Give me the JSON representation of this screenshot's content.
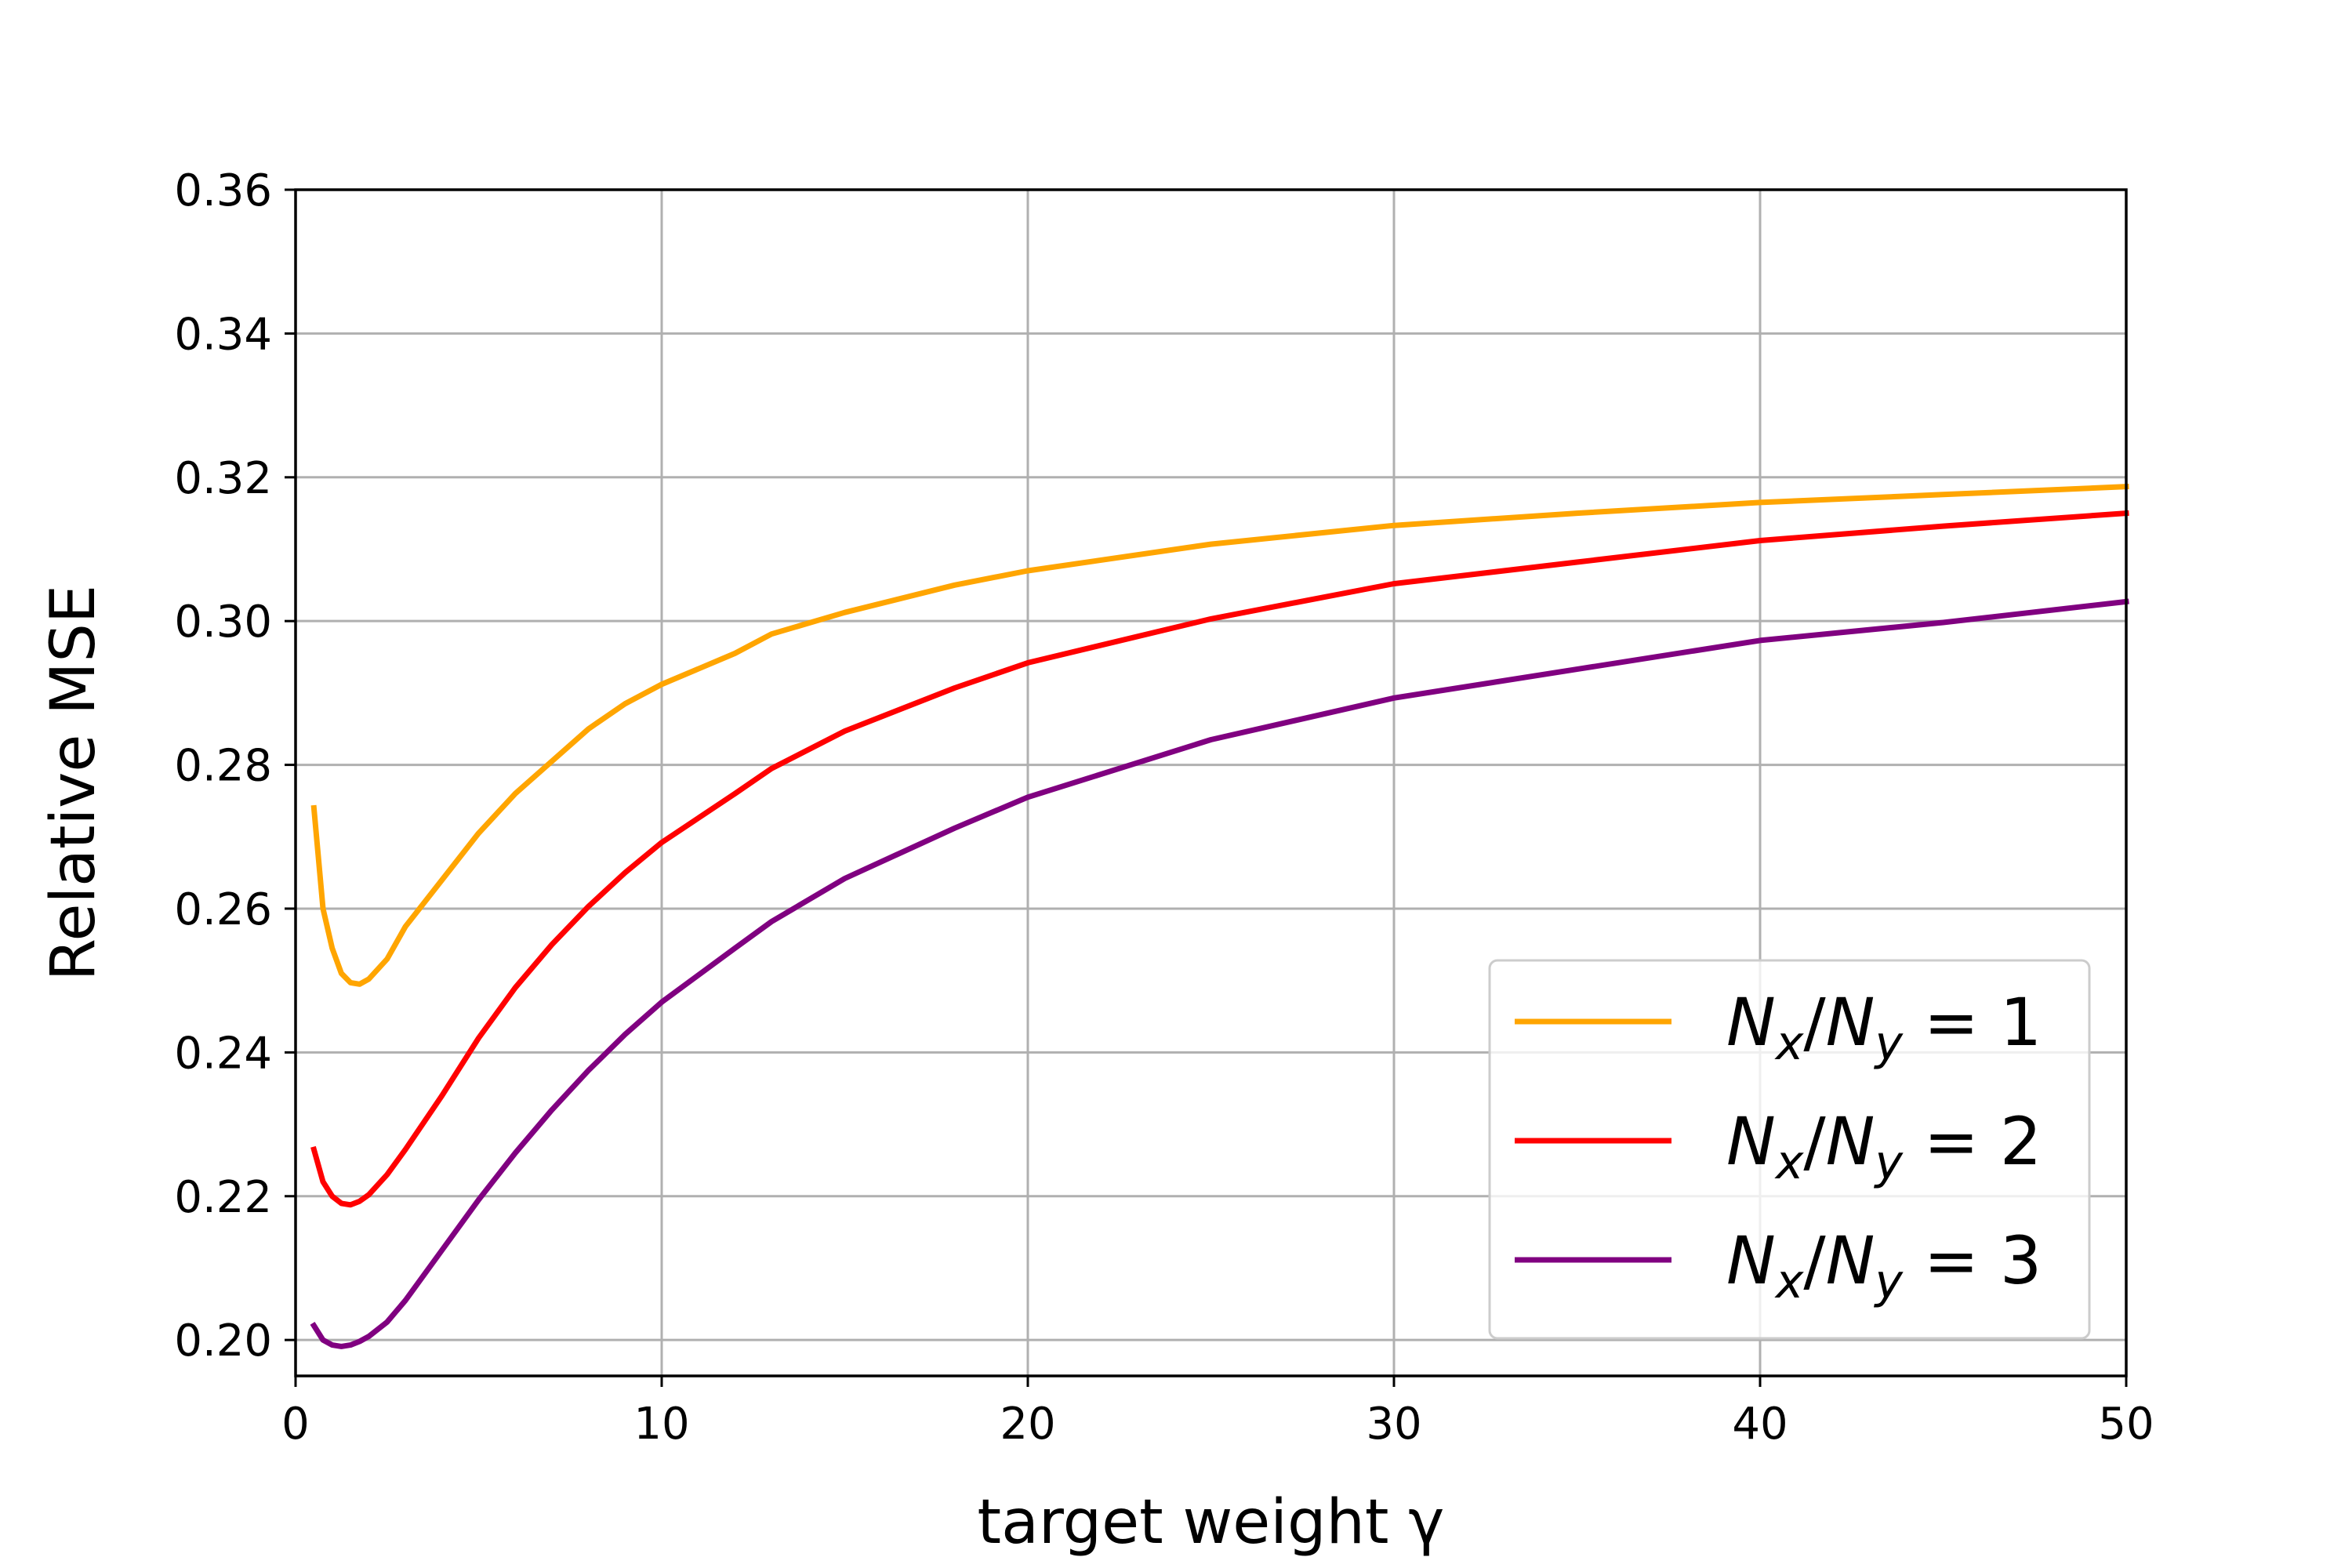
{
  "chart_data": {
    "type": "line",
    "title": "",
    "xlabel": "target weight γ",
    "ylabel": "Relative MSE",
    "xlim": [
      0,
      50
    ],
    "ylim": [
      0.195,
      0.36
    ],
    "xticks": [
      0,
      10,
      20,
      30,
      40,
      50
    ],
    "yticks": [
      0.2,
      0.22,
      0.24,
      0.26,
      0.28,
      0.3,
      0.32,
      0.34,
      0.36
    ],
    "xtick_labels": [
      "0",
      "10",
      "20",
      "30",
      "40",
      "50"
    ],
    "ytick_labels": [
      "0.20",
      "0.22",
      "0.24",
      "0.26",
      "0.28",
      "0.30",
      "0.32",
      "0.34",
      "0.36"
    ],
    "grid": true,
    "legend_position": "lower-right",
    "series": [
      {
        "name": "N_x/N_y = 1",
        "legend_parts": {
          "a": "N",
          "a_sub": "x",
          "b": "N",
          "b_sub": "y",
          "value": "1"
        },
        "color": "#FFA500",
        "x": [
          0.5,
          0.75,
          1.0,
          1.25,
          1.5,
          1.75,
          2.0,
          2.5,
          3,
          4,
          5,
          6,
          7,
          8,
          9,
          10,
          12,
          13,
          15,
          18,
          20,
          25,
          30,
          35,
          40,
          45,
          50
        ],
        "y": [
          0.274,
          0.26,
          0.2545,
          0.251,
          0.2497,
          0.2495,
          0.2502,
          0.253,
          0.2575,
          0.264,
          0.2705,
          0.276,
          0.2805,
          0.285,
          0.2885,
          0.2912,
          0.2955,
          0.2982,
          0.3012,
          0.305,
          0.307,
          0.3107,
          0.3133,
          0.315,
          0.3165,
          0.3176,
          0.3187
        ]
      },
      {
        "name": "N_x/N_y = 2",
        "legend_parts": {
          "a": "N",
          "a_sub": "x",
          "b": "N",
          "b_sub": "y",
          "value": "2"
        },
        "color": "#FF0000",
        "x": [
          0.5,
          0.75,
          1.0,
          1.25,
          1.5,
          1.75,
          2.0,
          2.5,
          3,
          4,
          5,
          6,
          7,
          8,
          9,
          10,
          12,
          13,
          15,
          18,
          20,
          25,
          30,
          35,
          40,
          45,
          50
        ],
        "y": [
          0.2265,
          0.222,
          0.22,
          0.219,
          0.2188,
          0.2193,
          0.2202,
          0.223,
          0.2265,
          0.234,
          0.242,
          0.249,
          0.255,
          0.2603,
          0.265,
          0.2692,
          0.276,
          0.2795,
          0.2847,
          0.2907,
          0.2942,
          0.3003,
          0.3052,
          0.3082,
          0.3112,
          0.3132,
          0.315
        ]
      },
      {
        "name": "N_x/N_y = 3",
        "legend_parts": {
          "a": "N",
          "a_sub": "x",
          "b": "N",
          "b_sub": "y",
          "value": "3"
        },
        "color": "#800080",
        "x": [
          0.5,
          0.75,
          1.0,
          1.25,
          1.5,
          1.75,
          2.0,
          2.5,
          3,
          4,
          5,
          6,
          7,
          8,
          9,
          10,
          12,
          13,
          15,
          18,
          20,
          25,
          30,
          35,
          40,
          45,
          50
        ],
        "y": [
          0.202,
          0.2,
          0.1993,
          0.1991,
          0.1993,
          0.1998,
          0.2005,
          0.2025,
          0.2055,
          0.2125,
          0.2195,
          0.226,
          0.232,
          0.2375,
          0.2425,
          0.247,
          0.2545,
          0.2582,
          0.2642,
          0.2712,
          0.2755,
          0.2835,
          0.2893,
          0.2933,
          0.2973,
          0.2998,
          0.3027
        ]
      }
    ]
  }
}
